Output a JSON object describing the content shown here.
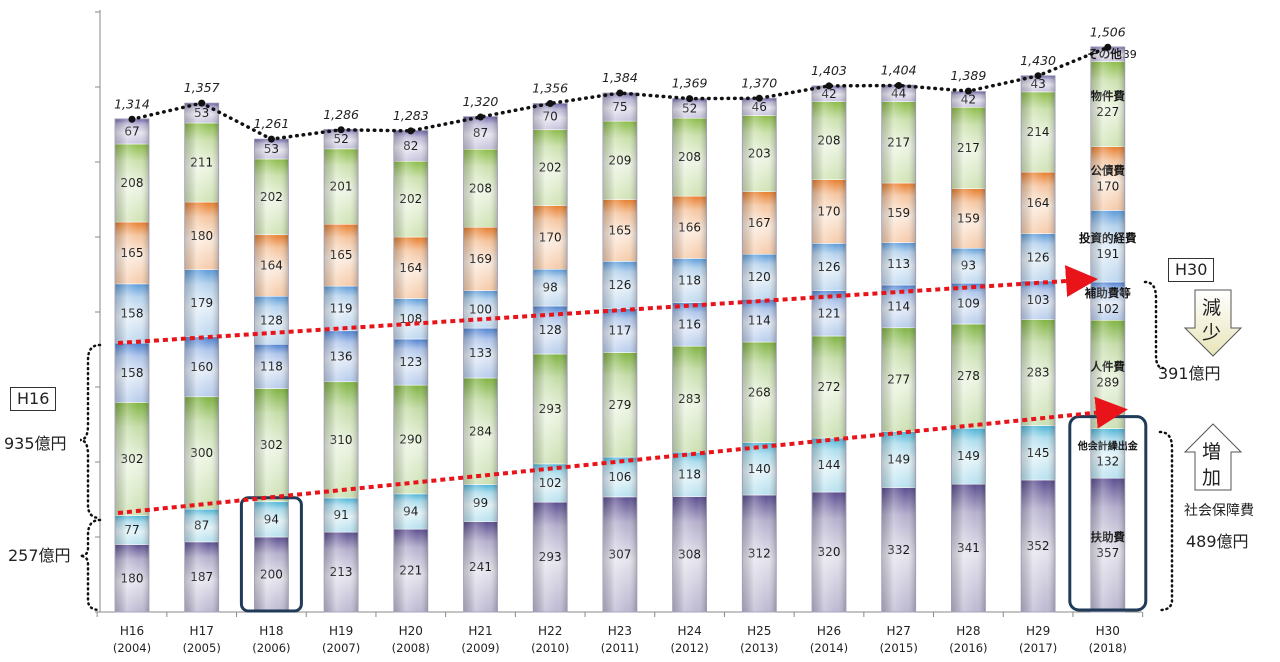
{
  "chart_data": {
    "type": "bar",
    "stacked": true,
    "categories": [
      [
        "H16",
        "(2004)"
      ],
      [
        "H17",
        "(2005)"
      ],
      [
        "H18",
        "(2006)"
      ],
      [
        "H19",
        "(2007)"
      ],
      [
        "H20",
        "(2008)"
      ],
      [
        "H21",
        "(2009)"
      ],
      [
        "H22",
        "(2010)"
      ],
      [
        "H23",
        "(2011)"
      ],
      [
        "H24",
        "(2012)"
      ],
      [
        "H25",
        "(2013)"
      ],
      [
        "H26",
        "(2014)"
      ],
      [
        "H27",
        "(2015)"
      ],
      [
        "H28",
        "(2016)"
      ],
      [
        "H29",
        "(2017)"
      ],
      [
        "H30",
        "(2018)"
      ]
    ],
    "series": [
      {
        "name": "扶助費",
        "color": "#5a4d8f",
        "values": [
          180,
          187,
          200,
          213,
          221,
          241,
          293,
          307,
          308,
          312,
          320,
          332,
          341,
          352,
          357
        ]
      },
      {
        "name": "他会計繰出金",
        "color": "#4ab3d6",
        "values": [
          77,
          87,
          94,
          91,
          94,
          99,
          102,
          106,
          118,
          140,
          144,
          149,
          149,
          145,
          132
        ]
      },
      {
        "name": "人件費",
        "color": "#7fb340",
        "values": [
          302,
          300,
          302,
          310,
          290,
          284,
          293,
          279,
          283,
          268,
          272,
          277,
          278,
          283,
          289
        ]
      },
      {
        "name": "補助費等",
        "color": "#4a7fd0",
        "values": [
          158,
          160,
          118,
          136,
          123,
          133,
          128,
          117,
          116,
          114,
          121,
          114,
          109,
          103,
          102
        ]
      },
      {
        "name": "投資的経費",
        "color": "#5a9ad8",
        "values": [
          158,
          179,
          128,
          119,
          108,
          100,
          98,
          126,
          118,
          120,
          126,
          113,
          93,
          126,
          191
        ]
      },
      {
        "name": "公債費",
        "color": "#e87d2a",
        "values": [
          165,
          180,
          164,
          165,
          164,
          169,
          170,
          165,
          166,
          167,
          170,
          159,
          159,
          164,
          170
        ]
      },
      {
        "name": "物件費",
        "color": "#8cbc48",
        "values": [
          208,
          211,
          202,
          201,
          202,
          208,
          202,
          209,
          208,
          203,
          208,
          217,
          217,
          214,
          227
        ]
      },
      {
        "name": "その他",
        "color": "#6e66a8",
        "values": [
          67,
          53,
          53,
          52,
          82,
          87,
          70,
          75,
          52,
          46,
          42,
          44,
          42,
          43,
          39
        ]
      }
    ],
    "totals": [
      "1,314",
      "1,357",
      "1,261",
      "1,286",
      "1,283",
      "1,320",
      "1,356",
      "1,384",
      "1,369",
      "1,370",
      "1,403",
      "1,404",
      "1,389",
      "1,430",
      "1,506"
    ],
    "totals_values": [
      1314,
      1357,
      1261,
      1286,
      1283,
      1320,
      1356,
      1384,
      1369,
      1370,
      1403,
      1404,
      1389,
      1430,
      1506
    ],
    "last_bar_labels": [
      "扶助費",
      "他会計繰出金",
      "人件費",
      "補助費等",
      "投資的経費",
      "公債費",
      "物件費",
      "その他"
    ],
    "ylim": [
      0,
      1600
    ],
    "yticks": [
      0,
      200,
      400,
      600,
      800,
      1000,
      1200,
      1400,
      1600
    ],
    "grid": false
  },
  "annotations": {
    "h16_box": "H16",
    "h16_upper": "935億円",
    "h16_lower": "257億円",
    "h30_box": "H30",
    "decrease_char1": "減",
    "decrease_char2": "少",
    "decrease_amount": "391億円",
    "increase_char1": "増",
    "increase_char2": "加",
    "increase_label": "社会保障費",
    "increase_amount": "489億円"
  }
}
